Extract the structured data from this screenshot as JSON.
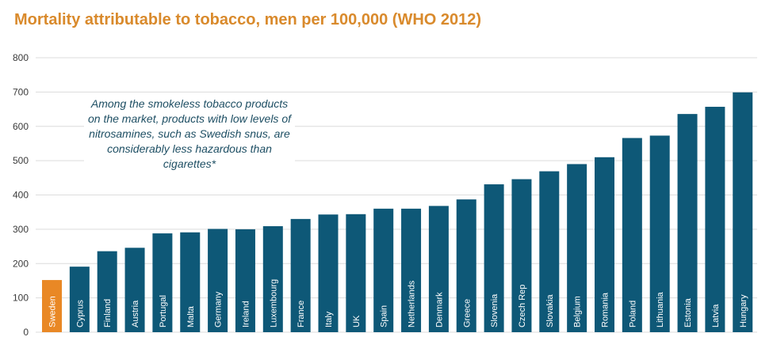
{
  "chart_data": {
    "type": "bar",
    "title": "Mortality attributable to tobacco, men per 100,000 (WHO 2012)",
    "categories": [
      "Sweden",
      "Cyprus",
      "Finland",
      "Austria",
      "Portugal",
      "Malta",
      "Germany",
      "Ireland",
      "Luxembourg",
      "France",
      "Italy",
      "UK",
      "Spain",
      "Netherlands",
      "Denmark",
      "Greece",
      "Slovenia",
      "Czech Rep",
      "Slovakia",
      "Belgium",
      "Romania",
      "Poland",
      "Lithuania",
      "Estonia",
      "Latvia",
      "Hungary"
    ],
    "values": [
      152,
      191,
      236,
      246,
      288,
      291,
      301,
      300,
      309,
      330,
      343,
      344,
      360,
      360,
      368,
      387,
      431,
      446,
      469,
      490,
      510,
      566,
      573,
      636,
      657,
      699
    ],
    "highlight_index": 0,
    "highlight_color": "#e98825",
    "bar_color": "#0e5877",
    "ylim": [
      0,
      800
    ],
    "yticks": [
      0,
      100,
      200,
      300,
      400,
      500,
      600,
      700,
      800
    ],
    "grid": true,
    "xlabel": "",
    "ylabel": "",
    "annotation": "Among the smokeless tobacco products on the market, products with low levels of nitrosamines, such as Swedish snus, are considerably less hazardous than cigarettes*"
  }
}
